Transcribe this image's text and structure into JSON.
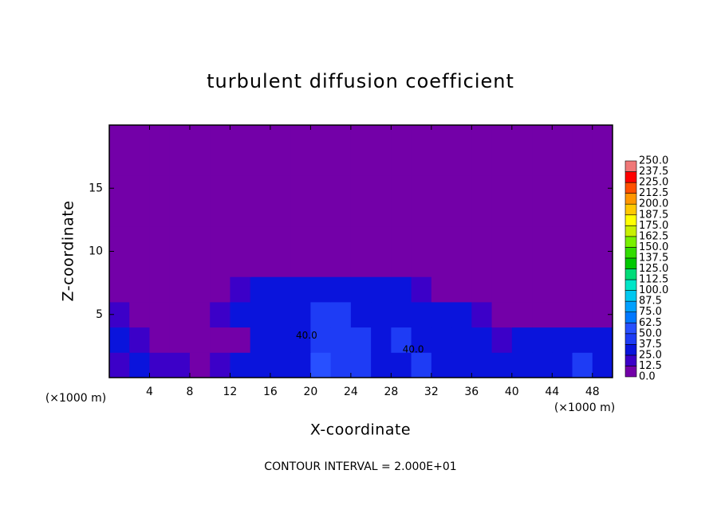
{
  "chart_data": {
    "type": "heatmap",
    "title": "turbulent diffusion coefficient",
    "x_label": "X-coordinate",
    "y_label": "Z-coordinate",
    "x_unit": "(×1000 m)",
    "footer": "CONTOUR INTERVAL = 2.000E+01",
    "xlim": [
      0,
      50
    ],
    "ylim": [
      0,
      20
    ],
    "xticks": [
      4,
      8,
      12,
      16,
      20,
      24,
      28,
      32,
      36,
      40,
      44,
      48
    ],
    "yticks": [
      5,
      10,
      15
    ],
    "x": [
      1,
      3,
      5,
      7,
      9,
      11,
      13,
      15,
      17,
      19,
      21,
      23,
      25,
      27,
      29,
      31,
      33,
      35,
      37,
      39,
      41,
      43,
      45,
      47,
      49
    ],
    "y": [
      1,
      3,
      5,
      7,
      9,
      11,
      13,
      15,
      17,
      19
    ],
    "z": [
      [
        20,
        25,
        20,
        15,
        10,
        20,
        30,
        30,
        35,
        35,
        50,
        45,
        40,
        35,
        35,
        40,
        35,
        30,
        35,
        30,
        35,
        30,
        35,
        40,
        30
      ],
      [
        25,
        20,
        10,
        10,
        5,
        5,
        10,
        30,
        35,
        35,
        45,
        45,
        40,
        35,
        40,
        35,
        35,
        35,
        25,
        20,
        30,
        35,
        30,
        30,
        35
      ],
      [
        15,
        10,
        5,
        5,
        5,
        15,
        35,
        35,
        35,
        35,
        45,
        40,
        35,
        35,
        35,
        35,
        35,
        25,
        15,
        10,
        5,
        5,
        5,
        5,
        5
      ],
      [
        0,
        0,
        0,
        0,
        0,
        0,
        20,
        30,
        30,
        30,
        35,
        35,
        30,
        30,
        25,
        20,
        5,
        0,
        0,
        0,
        0,
        0,
        0,
        0,
        0
      ],
      [
        0,
        0,
        0,
        0,
        0,
        0,
        0,
        0,
        5,
        5,
        5,
        5,
        5,
        0,
        0,
        0,
        0,
        0,
        0,
        0,
        0,
        0,
        0,
        0,
        0
      ],
      [
        0,
        0,
        0,
        0,
        0,
        0,
        0,
        0,
        0,
        0,
        0,
        0,
        0,
        0,
        0,
        0,
        0,
        0,
        0,
        0,
        0,
        0,
        0,
        0,
        0
      ],
      [
        0,
        0,
        0,
        0,
        0,
        0,
        0,
        0,
        0,
        0,
        0,
        0,
        0,
        0,
        0,
        0,
        0,
        0,
        0,
        0,
        0,
        0,
        0,
        0,
        0
      ],
      [
        0,
        0,
        0,
        0,
        0,
        0,
        0,
        0,
        0,
        0,
        0,
        0,
        0,
        0,
        0,
        0,
        0,
        0,
        0,
        0,
        0,
        0,
        0,
        0,
        0
      ],
      [
        0,
        0,
        0,
        0,
        0,
        0,
        0,
        0,
        0,
        0,
        0,
        0,
        0,
        0,
        0,
        0,
        0,
        0,
        0,
        0,
        0,
        0,
        0,
        0,
        0
      ],
      [
        0,
        0,
        0,
        0,
        0,
        0,
        0,
        0,
        0,
        0,
        0,
        0,
        0,
        0,
        0,
        0,
        0,
        0,
        0,
        0,
        0,
        0,
        0,
        0,
        0
      ]
    ],
    "annotations": [
      {
        "text": "40.0",
        "x": 19.6,
        "y": 3.3
      },
      {
        "text": "40.0",
        "x": 30.2,
        "y": 2.2
      }
    ],
    "colorbar": {
      "levels": [
        {
          "value": 0,
          "label": "0.0"
        },
        {
          "value": 12.5,
          "label": "12.5"
        },
        {
          "value": 25,
          "label": "25.0"
        },
        {
          "value": 37.5,
          "label": "37.5"
        },
        {
          "value": 50,
          "label": "50.0"
        },
        {
          "value": 62.5,
          "label": "62.5"
        },
        {
          "value": 75,
          "label": "75.0"
        },
        {
          "value": 87.5,
          "label": "87.5"
        },
        {
          "value": 100,
          "label": "100.0"
        },
        {
          "value": 112.5,
          "label": "112.5"
        },
        {
          "value": 125,
          "label": "125.0"
        },
        {
          "value": 137.5,
          "label": "137.5"
        },
        {
          "value": 150,
          "label": "150.0"
        },
        {
          "value": 162.5,
          "label": "162.5"
        },
        {
          "value": 175,
          "label": "175.0"
        },
        {
          "value": 187.5,
          "label": "187.5"
        },
        {
          "value": 200,
          "label": "200.0"
        },
        {
          "value": 212.5,
          "label": "212.5"
        },
        {
          "value": 225,
          "label": "225.0"
        },
        {
          "value": 237.5,
          "label": "237.5"
        },
        {
          "value": 250,
          "label": "250.0"
        }
      ],
      "colors": [
        "#7300a8",
        "#3c00c8",
        "#0a14dc",
        "#1e3cf5",
        "#2850ff",
        "#0078ff",
        "#00a0ff",
        "#00c8f0",
        "#00e6c8",
        "#00dc78",
        "#00c800",
        "#32dc00",
        "#78f000",
        "#c8f000",
        "#ffff00",
        "#ffc800",
        "#ff9600",
        "#ff5000",
        "#ff0000",
        "#f07878"
      ]
    }
  }
}
